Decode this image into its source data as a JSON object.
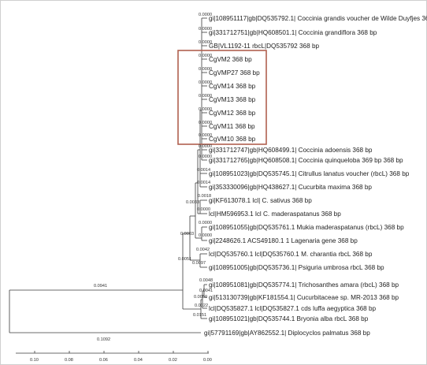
{
  "tree": {
    "leaves": [
      "gi|108951117|gb|DQ535792.1| Coccinia grandis voucher de Wilde Duyfjes 368 bp",
      "gi|331712751|gb|HQ608501.1| Coccinia grandiflora 368 bp",
      "GB|VL1192-11 rbcL|DQ535792 368 bp",
      "CgVM2 368 bp",
      "CgVMP27 368 bp",
      "CgVM14 368 bp",
      "CgVM13 368 bp",
      "CgVM12 368 bp",
      "CgVM11 368 bp",
      "CgVM10 368 bp",
      "gi|331712747|gb|HQ608499.1| Coccinia adoensis 368 bp",
      "gi|331712765|gb|HQ608508.1| Coccinia quinqueloba 369 bp 368 bp",
      "gi|108951023|gb|DQ535745.1| Citrullus lanatus voucher (rbcL) 368 bp",
      "gi|353330096|gb|HQ438627.1| Cucurbita maxima 368 bp",
      "gi|KF613078.1 lcl| C. sativus 368 bp",
      "lcl|HM596953.1 lcl C. maderaspatanus 368 bp",
      "gi|108951055|gb|DQ535761.1 Mukia maderaspatanus (rbcL) 368 bp",
      "gi|2248626.1 ACS49180.1 1 Lagenaria gene 368 bp",
      "lcl|DQ535760.1 lcl|DQ535760.1 M. charantia rbcL 368 bp",
      "gi|108951005|gb|DQ535736.1| Psiguria umbrosa rbcL 368 bp",
      "gi|108951081|gb|DQ535774.1| Trichosanthes amara (rbcL) 368 bp",
      "gi|513130739|gb|KF181554.1| Cucurbitaceae sp. MR-2013 368 bp",
      "lcl|DQ535827.1 lcl|DQ535827.1 cds luffa aegyptica 368 bp",
      "gi|108951021|gb|DQ535744.1 Bryonia alba rbcL 368 bp",
      "gi|57791169|gb|AY862552.1| Diplocyclos palmatus 368 bp"
    ],
    "branch_lengths": [
      {
        "id": "bl-a",
        "text": "0.0000"
      },
      {
        "id": "bl-b",
        "text": "0.0000"
      },
      {
        "id": "bl-c",
        "text": "0.0000"
      },
      {
        "id": "bl-d",
        "text": "0.0000"
      },
      {
        "id": "bl-e",
        "text": "0.0000"
      },
      {
        "id": "bl-f",
        "text": "0.0000"
      },
      {
        "id": "bl-g",
        "text": "0.0000"
      },
      {
        "id": "bl-h",
        "text": "0.0000"
      },
      {
        "id": "bl-i",
        "text": "0.0000"
      },
      {
        "id": "bl-j",
        "text": "0.0000"
      },
      {
        "id": "bl-k",
        "text": "0.0000"
      },
      {
        "id": "bl-l",
        "text": "0.0000"
      },
      {
        "id": "bl-m",
        "text": "0.0014"
      },
      {
        "id": "bl-n",
        "text": "0.0014"
      },
      {
        "id": "bl-o",
        "text": "0.0018"
      },
      {
        "id": "bl-p",
        "text": "0.0033"
      },
      {
        "id": "bl-q",
        "text": "0.0000"
      },
      {
        "id": "bl-r",
        "text": "0.0003"
      },
      {
        "id": "bl-s",
        "text": "0.0000"
      },
      {
        "id": "bl-t",
        "text": "0.0000"
      },
      {
        "id": "bl-u",
        "text": "0.0042"
      },
      {
        "id": "bl-v",
        "text": "0.0051"
      },
      {
        "id": "bl-w",
        "text": "0.0097"
      },
      {
        "id": "bl-x",
        "text": "0.0048"
      },
      {
        "id": "bl-y",
        "text": "0.0041"
      },
      {
        "id": "bl-z",
        "text": "0.0050"
      },
      {
        "id": "bl-aa",
        "text": "0.0022"
      },
      {
        "id": "bl-ab",
        "text": "0.0151"
      },
      {
        "id": "bl-ac",
        "text": "0.0941"
      },
      {
        "id": "bl-ad",
        "text": "0.1092"
      }
    ],
    "highlight_color": "#b0604f"
  },
  "axis": {
    "ticks": [
      "0.10",
      "0.08",
      "0.06",
      "0.04",
      "0.02",
      "0.00"
    ]
  }
}
